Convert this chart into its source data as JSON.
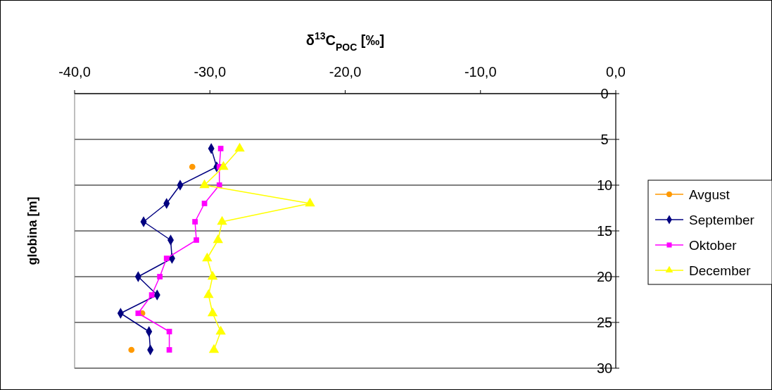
{
  "chart_data": {
    "type": "line",
    "xlabel": "δ$^{13}$C$_{POC}$ [‰]",
    "ylabel": "globina [m]",
    "xlim": [
      -40,
      0
    ],
    "xticks": [
      {
        "value": -40,
        "label": "-40,0"
      },
      {
        "value": -30,
        "label": "-30,0"
      },
      {
        "value": -20,
        "label": "-20,0"
      },
      {
        "value": -10,
        "label": "-10,0"
      },
      {
        "value": 0,
        "label": "0,0"
      }
    ],
    "ylim": [
      30,
      0
    ],
    "yticks": [
      0,
      5,
      10,
      15,
      20,
      25,
      30
    ],
    "grid": "y",
    "legend": "right",
    "series": [
      {
        "name": "Avgust",
        "color": "#ff9900",
        "type": "scatter",
        "marker": "circle",
        "x": [
          -31.3,
          -35.0,
          -35.8
        ],
        "values": [
          8,
          24,
          28
        ]
      },
      {
        "name": "September",
        "color": "#000080",
        "marker": "diamond",
        "x": [
          -29.9,
          -29.5,
          -32.2,
          -33.2,
          -34.9,
          -32.9,
          -32.8,
          -35.3,
          -33.9,
          -36.6,
          -34.5,
          -34.4
        ],
        "values": [
          6,
          8,
          10,
          12,
          14,
          16,
          18,
          20,
          22,
          24,
          26,
          28
        ]
      },
      {
        "name": "Oktober",
        "color": "#ff00ff",
        "marker": "square",
        "x": [
          -29.2,
          -29.3,
          -29.3,
          -30.4,
          -31.1,
          -31.0,
          -33.2,
          -33.7,
          -34.3,
          -35.3,
          -33.0,
          -33.0
        ],
        "values": [
          6,
          8,
          10,
          12,
          14,
          16,
          18,
          20,
          22,
          24,
          26,
          28
        ]
      },
      {
        "name": "December",
        "color": "#ffff00",
        "marker": "triangle",
        "x": [
          -27.8,
          -29.0,
          -30.4,
          -22.6,
          -29.1,
          -29.4,
          -30.2,
          -29.8,
          -30.1,
          -29.8,
          -29.2,
          -29.7
        ],
        "values": [
          6,
          8,
          10,
          12,
          14,
          16,
          18,
          20,
          22,
          24,
          26,
          28
        ]
      }
    ]
  }
}
